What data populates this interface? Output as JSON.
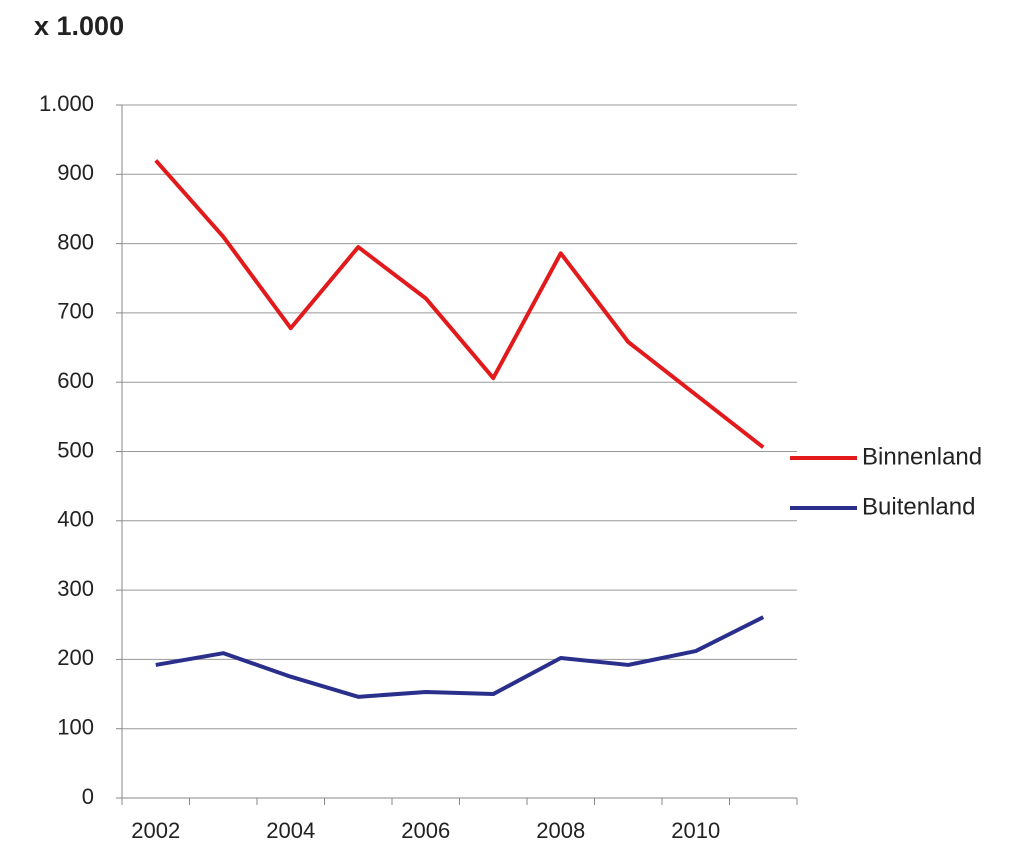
{
  "chart_data": {
    "type": "line",
    "title": "x 1.000",
    "categories": [
      "2002",
      null,
      "2004",
      null,
      "2006",
      null,
      "2008",
      null,
      "2010",
      null
    ],
    "series": [
      {
        "name": "Binnenland",
        "color": "#e31a1c",
        "values": [
          920,
          810,
          678,
          795,
          721,
          606,
          786,
          658,
          582,
          506
        ]
      },
      {
        "name": "Buitenland",
        "color": "#2b2f8c",
        "values": [
          192,
          209,
          175,
          146,
          153,
          150,
          202,
          192,
          212,
          261
        ]
      }
    ],
    "ylim": [
      0,
      1000
    ],
    "yticks": [
      0,
      100,
      200,
      300,
      400,
      500,
      600,
      700,
      800,
      900,
      {
        "value": 1000,
        "label": "1.000"
      }
    ],
    "grid": true,
    "legend": "right"
  }
}
